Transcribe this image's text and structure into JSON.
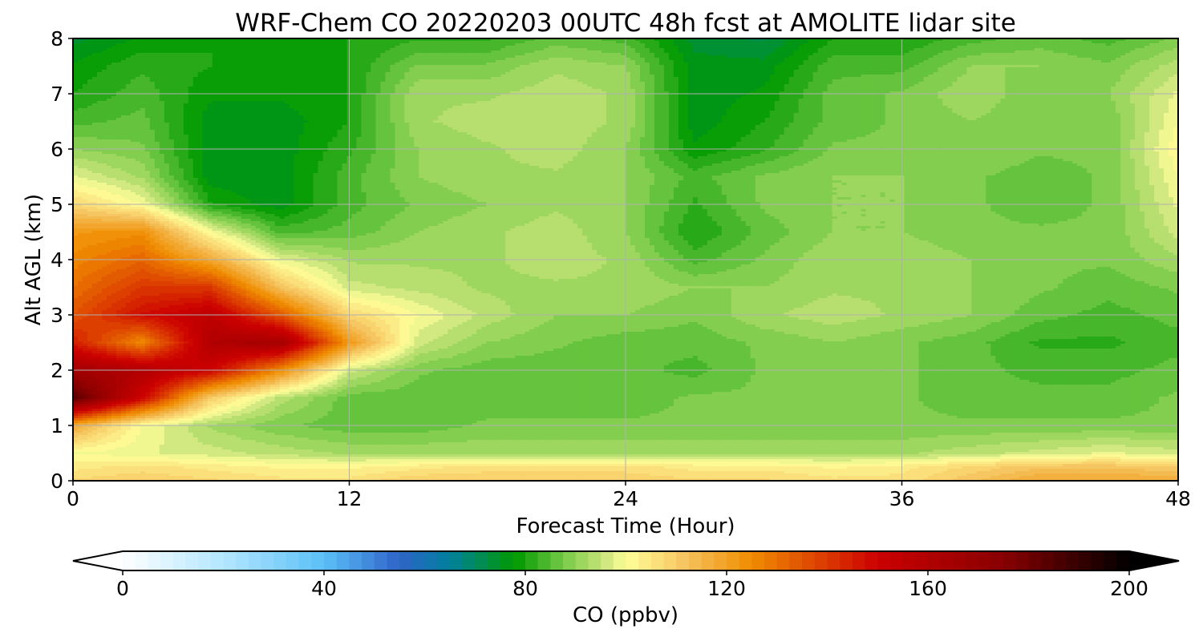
{
  "chart_data": {
    "type": "heatmap",
    "title": "WRF-Chem CO  20220203 00UTC 48h fcst at AMOLITE lidar site",
    "xlabel": "Forecast Time (Hour)",
    "ylabel": "Alt AGL (km)",
    "xlim": [
      0,
      48
    ],
    "ylim": [
      0,
      8
    ],
    "x_ticks": [
      0,
      12,
      24,
      36,
      48
    ],
    "x_tick_labels": [
      "0",
      "12",
      "24",
      "36",
      "48"
    ],
    "y_ticks": [
      0,
      1,
      2,
      3,
      4,
      5,
      6,
      7,
      8
    ],
    "y_tick_labels": [
      "0",
      "1",
      "2",
      "3",
      "4",
      "5",
      "6",
      "7",
      "8"
    ],
    "grid": true,
    "x": [
      0,
      3,
      6,
      9,
      12,
      15,
      18,
      21,
      24,
      27,
      30,
      33,
      36,
      39,
      42,
      45,
      48
    ],
    "y": [
      0,
      0.25,
      0.5,
      1,
      1.5,
      2,
      2.5,
      3,
      3.5,
      4,
      4.5,
      5,
      5.5,
      6,
      6.5,
      7,
      7.5,
      8
    ],
    "z": [
      [
        108,
        110,
        108,
        106,
        106,
        110,
        110,
        110,
        110,
        108,
        108,
        106,
        106,
        112,
        118,
        118,
        118
      ],
      [
        104,
        106,
        104,
        102,
        102,
        104,
        106,
        106,
        106,
        104,
        104,
        102,
        104,
        108,
        112,
        112,
        110
      ],
      [
        100,
        98,
        96,
        94,
        92,
        92,
        92,
        92,
        92,
        92,
        92,
        92,
        92,
        94,
        96,
        98,
        96
      ],
      [
        118,
        100,
        92,
        88,
        86,
        86,
        88,
        88,
        88,
        88,
        88,
        88,
        88,
        88,
        88,
        88,
        88
      ],
      [
        185,
        150,
        110,
        94,
        86,
        86,
        86,
        86,
        86,
        88,
        88,
        88,
        88,
        86,
        86,
        86,
        88
      ],
      [
        165,
        160,
        150,
        125,
        96,
        88,
        86,
        86,
        86,
        84,
        88,
        88,
        88,
        86,
        84,
        84,
        86
      ],
      [
        145,
        125,
        160,
        165,
        122,
        96,
        90,
        88,
        86,
        86,
        88,
        90,
        88,
        86,
        82,
        82,
        84
      ],
      [
        135,
        148,
        155,
        135,
        108,
        100,
        94,
        90,
        90,
        88,
        92,
        94,
        92,
        90,
        86,
        84,
        86
      ],
      [
        130,
        140,
        140,
        112,
        96,
        94,
        92,
        92,
        92,
        90,
        90,
        92,
        92,
        90,
        88,
        86,
        88
      ],
      [
        126,
        132,
        118,
        98,
        92,
        92,
        92,
        94,
        92,
        84,
        88,
        92,
        92,
        90,
        88,
        88,
        92
      ],
      [
        122,
        124,
        100,
        84,
        86,
        90,
        92,
        94,
        90,
        80,
        86,
        90,
        90,
        88,
        88,
        88,
        96
      ],
      [
        108,
        100,
        80,
        76,
        84,
        88,
        90,
        92,
        90,
        82,
        88,
        90,
        90,
        88,
        86,
        88,
        98
      ],
      [
        98,
        92,
        76,
        76,
        84,
        90,
        92,
        92,
        90,
        84,
        88,
        90,
        90,
        88,
        86,
        88,
        100
      ],
      [
        90,
        88,
        76,
        76,
        82,
        90,
        92,
        94,
        90,
        78,
        82,
        88,
        88,
        90,
        88,
        88,
        102
      ],
      [
        84,
        86,
        76,
        76,
        80,
        92,
        94,
        94,
        92,
        76,
        80,
        86,
        88,
        90,
        88,
        88,
        100
      ],
      [
        80,
        84,
        78,
        78,
        80,
        92,
        92,
        94,
        92,
        76,
        78,
        86,
        88,
        92,
        88,
        90,
        98
      ],
      [
        78,
        82,
        80,
        78,
        80,
        88,
        88,
        92,
        90,
        76,
        76,
        84,
        84,
        90,
        90,
        88,
        94
      ],
      [
        74,
        78,
        80,
        78,
        80,
        82,
        82,
        86,
        84,
        74,
        72,
        80,
        80,
        84,
        86,
        84,
        88
      ]
    ],
    "colorbar": {
      "label": "CO  (ppbv)",
      "min": 0,
      "max": 200,
      "step": 2.5,
      "ticks": [
        0,
        40,
        80,
        120,
        160,
        200
      ],
      "tick_labels": [
        "0",
        "40",
        "80",
        "120",
        "160",
        "200"
      ],
      "extend": "both",
      "colors": [
        "#ffffff",
        "#b3e6ff",
        "#5bc0f8",
        "#2f63c8",
        "#007f9e",
        "#009900",
        "#7bcc4a",
        "#cfe67f",
        "#ffff99",
        "#f5c25e",
        "#f08c00",
        "#cc0000",
        "#880000",
        "#000000"
      ],
      "color_positions": [
        0,
        20,
        40,
        55,
        65,
        78,
        88,
        96,
        100,
        112,
        125,
        150,
        175,
        200
      ],
      "lower_extend_color": "#ffffff",
      "upper_extend_color": "#000000"
    }
  }
}
